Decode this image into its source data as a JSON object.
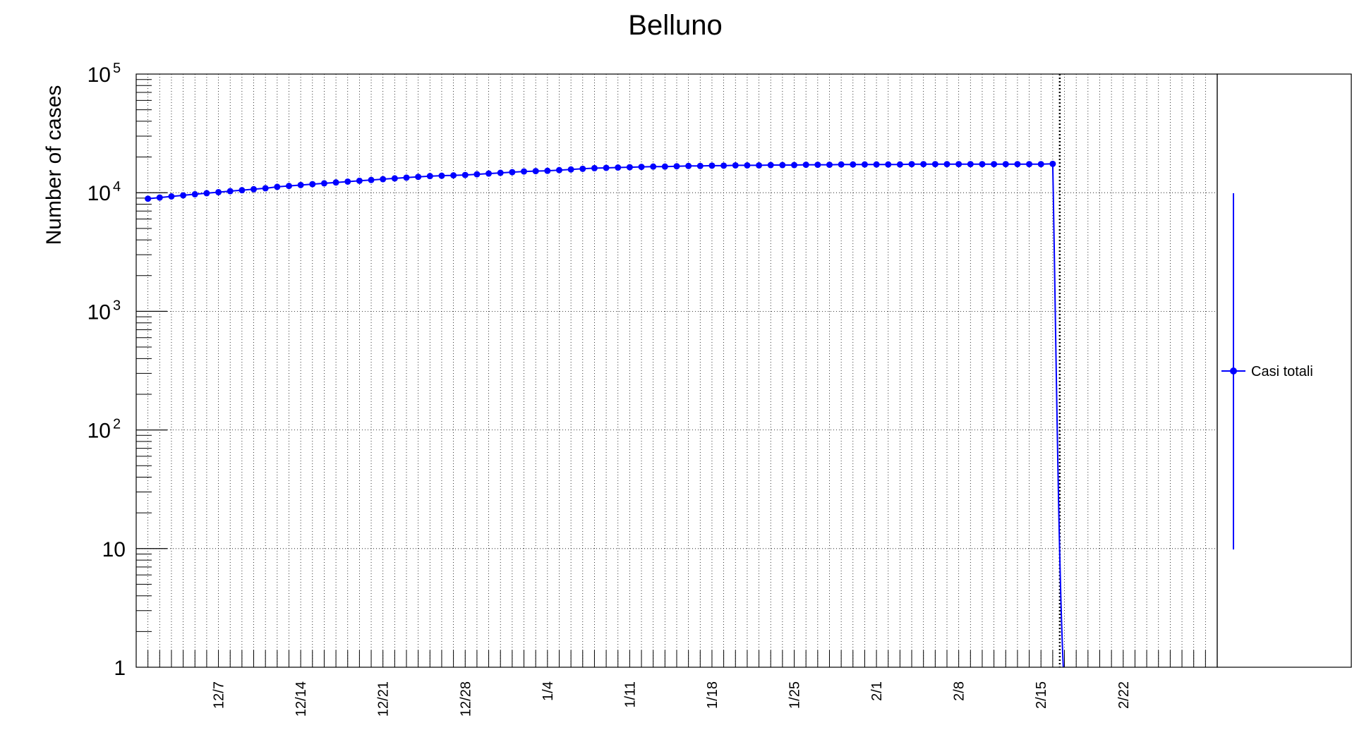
{
  "chart_data": {
    "type": "line",
    "title": "Belluno",
    "ylabel": "Number of cases",
    "xlabel": "",
    "yscale": "log",
    "ylim": [
      1,
      100000
    ],
    "xlim": [
      "2020-11-30",
      "2021-03-02"
    ],
    "grid": true,
    "legend_position": "right",
    "y_ticks": [
      {
        "value": 1,
        "label": "1"
      },
      {
        "value": 10,
        "label": "10"
      },
      {
        "value": 100,
        "label": "10",
        "exp": "2"
      },
      {
        "value": 1000,
        "label": "10",
        "exp": "3"
      },
      {
        "value": 10000,
        "label": "10",
        "exp": "4"
      },
      {
        "value": 100000,
        "label": "10",
        "exp": "5"
      }
    ],
    "x_ticks": [
      {
        "x": "2020-12-07",
        "label": "12/7"
      },
      {
        "x": "2020-12-14",
        "label": "12/14"
      },
      {
        "x": "2020-12-21",
        "label": "12/21"
      },
      {
        "x": "2020-12-28",
        "label": "12/28"
      },
      {
        "x": "2021-01-04",
        "label": "1/4"
      },
      {
        "x": "2021-01-11",
        "label": "1/11"
      },
      {
        "x": "2021-01-18",
        "label": "1/18"
      },
      {
        "x": "2021-01-25",
        "label": "1/25"
      },
      {
        "x": "2021-02-01",
        "label": "2/1"
      },
      {
        "x": "2021-02-08",
        "label": "2/8"
      },
      {
        "x": "2021-02-15",
        "label": "2/15"
      },
      {
        "x": "2021-02-22",
        "label": "2/22"
      }
    ],
    "marker_line": {
      "x": "2021-02-16"
    },
    "series": [
      {
        "name": "Casi totali",
        "color": "#0000ff",
        "x": [
          "2020-12-01",
          "2020-12-02",
          "2020-12-03",
          "2020-12-04",
          "2020-12-05",
          "2020-12-06",
          "2020-12-07",
          "2020-12-08",
          "2020-12-09",
          "2020-12-10",
          "2020-12-11",
          "2020-12-12",
          "2020-12-13",
          "2020-12-14",
          "2020-12-15",
          "2020-12-16",
          "2020-12-17",
          "2020-12-18",
          "2020-12-19",
          "2020-12-20",
          "2020-12-21",
          "2020-12-22",
          "2020-12-23",
          "2020-12-24",
          "2020-12-25",
          "2020-12-26",
          "2020-12-27",
          "2020-12-28",
          "2020-12-29",
          "2020-12-30",
          "2020-12-31",
          "2021-01-01",
          "2021-01-02",
          "2021-01-03",
          "2021-01-04",
          "2021-01-05",
          "2021-01-06",
          "2021-01-07",
          "2021-01-08",
          "2021-01-09",
          "2021-01-10",
          "2021-01-11",
          "2021-01-12",
          "2021-01-13",
          "2021-01-14",
          "2021-01-15",
          "2021-01-16",
          "2021-01-17",
          "2021-01-18",
          "2021-01-19",
          "2021-01-20",
          "2021-01-21",
          "2021-01-22",
          "2021-01-23",
          "2021-01-24",
          "2021-01-25",
          "2021-01-26",
          "2021-01-27",
          "2021-01-28",
          "2021-01-29",
          "2021-01-30",
          "2021-01-31",
          "2021-02-01",
          "2021-02-02",
          "2021-02-03",
          "2021-02-04",
          "2021-02-05",
          "2021-02-06",
          "2021-02-07",
          "2021-02-08",
          "2021-02-09",
          "2021-02-10",
          "2021-02-11",
          "2021-02-12",
          "2021-02-13",
          "2021-02-14",
          "2021-02-15",
          "2021-02-16"
        ],
        "y": [
          8900,
          9100,
          9300,
          9500,
          9700,
          9900,
          10100,
          10300,
          10500,
          10700,
          10900,
          11200,
          11400,
          11600,
          11800,
          12000,
          12200,
          12400,
          12600,
          12800,
          13000,
          13200,
          13400,
          13600,
          13800,
          13900,
          14000,
          14100,
          14300,
          14500,
          14700,
          14900,
          15100,
          15200,
          15300,
          15500,
          15700,
          15900,
          16100,
          16200,
          16300,
          16400,
          16500,
          16600,
          16600,
          16700,
          16800,
          16800,
          16900,
          16900,
          17000,
          17000,
          17000,
          17100,
          17100,
          17100,
          17200,
          17200,
          17200,
          17300,
          17300,
          17300,
          17300,
          17300,
          17300,
          17400,
          17400,
          17400,
          17400,
          17400,
          17400,
          17400,
          17400,
          17400,
          17400,
          17400,
          17400,
          17500
        ]
      }
    ]
  }
}
